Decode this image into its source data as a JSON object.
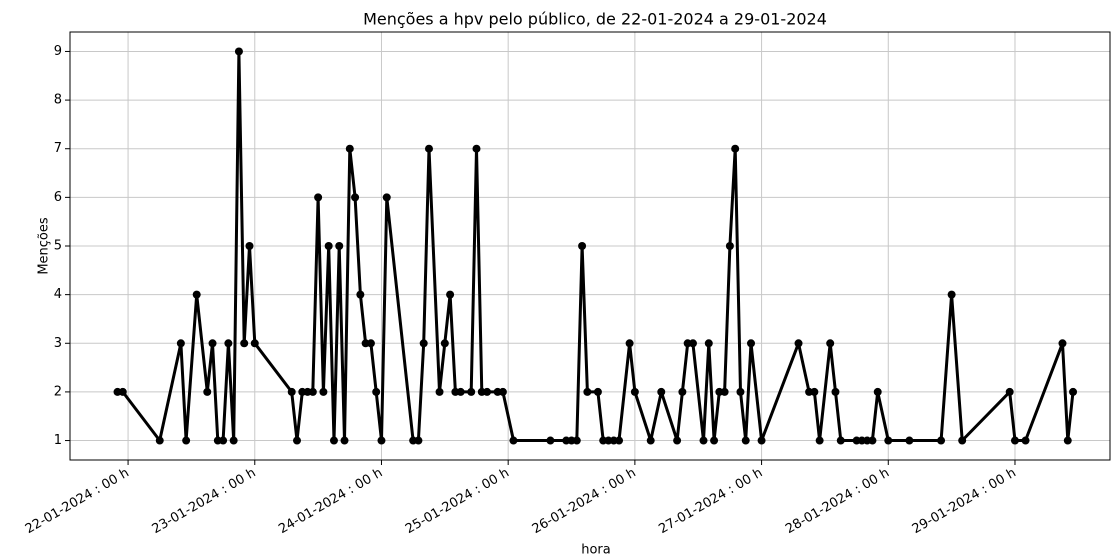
{
  "chart_data": {
    "type": "line",
    "title": "Menções a hpv pelo público, de 22-01-2024 a 29-01-2024",
    "xlabel": "hora",
    "ylabel": "Menções",
    "color": "#000000",
    "grid": true,
    "x": [
      "2024-01-21T22:00",
      "2024-01-21T23:00",
      "2024-01-22T06:00",
      "2024-01-22T10:00",
      "2024-01-22T11:00",
      "2024-01-22T13:00",
      "2024-01-22T15:00",
      "2024-01-22T16:00",
      "2024-01-22T17:00",
      "2024-01-22T18:00",
      "2024-01-22T19:00",
      "2024-01-22T20:00",
      "2024-01-22T21:00",
      "2024-01-22T22:00",
      "2024-01-22T23:00",
      "2024-01-23T00:00",
      "2024-01-23T07:00",
      "2024-01-23T08:00",
      "2024-01-23T09:00",
      "2024-01-23T10:00",
      "2024-01-23T11:00",
      "2024-01-23T12:00",
      "2024-01-23T13:00",
      "2024-01-23T14:00",
      "2024-01-23T15:00",
      "2024-01-23T16:00",
      "2024-01-23T17:00",
      "2024-01-23T18:00",
      "2024-01-23T19:00",
      "2024-01-23T20:00",
      "2024-01-23T21:00",
      "2024-01-23T22:00",
      "2024-01-23T23:00",
      "2024-01-24T00:00",
      "2024-01-24T01:00",
      "2024-01-24T06:00",
      "2024-01-24T07:00",
      "2024-01-24T08:00",
      "2024-01-24T09:00",
      "2024-01-24T11:00",
      "2024-01-24T12:00",
      "2024-01-24T13:00",
      "2024-01-24T14:00",
      "2024-01-24T15:00",
      "2024-01-24T17:00",
      "2024-01-24T18:00",
      "2024-01-24T19:00",
      "2024-01-24T20:00",
      "2024-01-24T22:00",
      "2024-01-24T23:00",
      "2024-01-25T01:00",
      "2024-01-25T08:00",
      "2024-01-25T11:00",
      "2024-01-25T12:00",
      "2024-01-25T13:00",
      "2024-01-25T14:00",
      "2024-01-25T15:00",
      "2024-01-25T17:00",
      "2024-01-25T18:00",
      "2024-01-25T19:00",
      "2024-01-25T20:00",
      "2024-01-25T21:00",
      "2024-01-25T23:00",
      "2024-01-26T00:00",
      "2024-01-26T03:00",
      "2024-01-26T05:00",
      "2024-01-26T08:00",
      "2024-01-26T09:00",
      "2024-01-26T10:00",
      "2024-01-26T11:00",
      "2024-01-26T13:00",
      "2024-01-26T14:00",
      "2024-01-26T15:00",
      "2024-01-26T16:00",
      "2024-01-26T17:00",
      "2024-01-26T18:00",
      "2024-01-26T19:00",
      "2024-01-26T20:00",
      "2024-01-26T21:00",
      "2024-01-26T22:00",
      "2024-01-27T00:00",
      "2024-01-27T07:00",
      "2024-01-27T09:00",
      "2024-01-27T10:00",
      "2024-01-27T11:00",
      "2024-01-27T13:00",
      "2024-01-27T14:00",
      "2024-01-27T15:00",
      "2024-01-27T18:00",
      "2024-01-27T19:00",
      "2024-01-27T20:00",
      "2024-01-27T21:00",
      "2024-01-27T22:00",
      "2024-01-28T00:00",
      "2024-01-28T04:00",
      "2024-01-28T10:00",
      "2024-01-28T12:00",
      "2024-01-28T14:00",
      "2024-01-28T23:00",
      "2024-01-29T00:00",
      "2024-01-29T02:00",
      "2024-01-29T09:00",
      "2024-01-29T10:00",
      "2024-01-29T11:00"
    ],
    "values": [
      2,
      2,
      1,
      3,
      1,
      4,
      2,
      3,
      1,
      1,
      3,
      1,
      9,
      3,
      5,
      3,
      2,
      1,
      2,
      2,
      2,
      6,
      2,
      5,
      1,
      5,
      1,
      7,
      6,
      4,
      3,
      3,
      2,
      1,
      6,
      1,
      1,
      3,
      7,
      2,
      3,
      4,
      2,
      2,
      2,
      7,
      2,
      2,
      2,
      2,
      1,
      1,
      1,
      1,
      1,
      5,
      2,
      2,
      1,
      1,
      1,
      1,
      3,
      2,
      1,
      2,
      1,
      2,
      3,
      3,
      1,
      3,
      1,
      2,
      2,
      5,
      7,
      2,
      1,
      3,
      1,
      3,
      2,
      2,
      1,
      3,
      2,
      1,
      1,
      1,
      1,
      1,
      2,
      1,
      1,
      1,
      4,
      1,
      2,
      1,
      1,
      3,
      1,
      2
    ],
    "xlim": [
      "2024-01-21T13:00",
      "2024-01-29T18:00"
    ],
    "xticks": [
      {
        "value": "2024-01-22T00:00",
        "label": "22-01-2024 : 00 h"
      },
      {
        "value": "2024-01-23T00:00",
        "label": "23-01-2024 : 00 h"
      },
      {
        "value": "2024-01-24T00:00",
        "label": "24-01-2024 : 00 h"
      },
      {
        "value": "2024-01-25T00:00",
        "label": "25-01-2024 : 00 h"
      },
      {
        "value": "2024-01-26T00:00",
        "label": "26-01-2024 : 00 h"
      },
      {
        "value": "2024-01-27T00:00",
        "label": "27-01-2024 : 00 h"
      },
      {
        "value": "2024-01-28T00:00",
        "label": "28-01-2024 : 00 h"
      },
      {
        "value": "2024-01-29T00:00",
        "label": "29-01-2024 : 00 h"
      }
    ],
    "ylim": [
      0.6,
      9.4
    ],
    "yticks": [
      1,
      2,
      3,
      4,
      5,
      6,
      7,
      8,
      9
    ]
  }
}
